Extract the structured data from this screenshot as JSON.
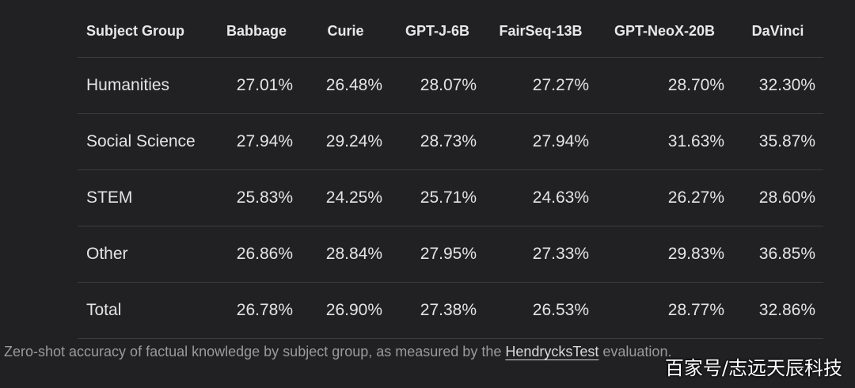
{
  "table": {
    "headers": [
      "Subject Group",
      "Babbage",
      "Curie",
      "GPT-J-6B",
      "FairSeq-13B",
      "GPT-NeoX-20B",
      "DaVinci"
    ],
    "rows": [
      [
        "Humanities",
        "27.01%",
        "26.48%",
        "28.07%",
        "27.27%",
        "28.70%",
        "32.30%"
      ],
      [
        "Social Science",
        "27.94%",
        "29.24%",
        "28.73%",
        "27.94%",
        "31.63%",
        "35.87%"
      ],
      [
        "STEM",
        "25.83%",
        "24.25%",
        "25.71%",
        "24.63%",
        "26.27%",
        "28.60%"
      ],
      [
        "Other",
        "26.86%",
        "28.84%",
        "27.95%",
        "27.33%",
        "29.83%",
        "36.85%"
      ],
      [
        "Total",
        "26.78%",
        "26.90%",
        "27.38%",
        "26.53%",
        "28.77%",
        "32.86%"
      ]
    ]
  },
  "caption": {
    "text": "Zero-shot accuracy of factual knowledge by subject group, as measured by the ",
    "link": "HendrycksTest",
    "suffix": " evaluation."
  },
  "watermark": "百家号/志远天辰科技"
}
